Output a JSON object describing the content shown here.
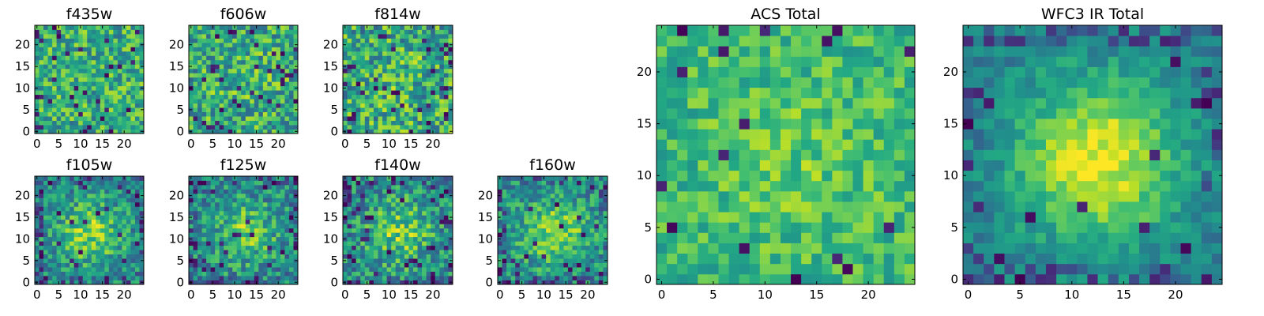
{
  "chart_data": {
    "type": "heatmap",
    "colormap": "viridis",
    "grid": false,
    "panels": [
      {
        "title": "f435w",
        "size": 25,
        "x_ticks": [
          0,
          5,
          10,
          15,
          20
        ],
        "y_ticks": [
          0,
          5,
          10,
          15,
          20
        ],
        "xlim": [
          0,
          24
        ],
        "ylim": [
          0,
          24
        ],
        "seed": 11,
        "center": 0.0,
        "base": 0.62,
        "noise": 0.26,
        "outliers": 0.05
      },
      {
        "title": "f606w",
        "size": 25,
        "x_ticks": [
          0,
          5,
          10,
          15,
          20
        ],
        "y_ticks": [
          0,
          5,
          10,
          15,
          20
        ],
        "xlim": [
          0,
          24
        ],
        "ylim": [
          0,
          24
        ],
        "seed": 23,
        "center": 0.05,
        "base": 0.6,
        "noise": 0.28,
        "outliers": 0.05
      },
      {
        "title": "f814w",
        "size": 25,
        "x_ticks": [
          0,
          5,
          10,
          15,
          20
        ],
        "y_ticks": [
          0,
          5,
          10,
          15,
          20
        ],
        "xlim": [
          0,
          24
        ],
        "ylim": [
          0,
          24
        ],
        "seed": 37,
        "center": 0.05,
        "base": 0.6,
        "noise": 0.3,
        "outliers": 0.06
      },
      {
        "title": "f105w",
        "size": 25,
        "x_ticks": [
          0,
          5,
          10,
          15,
          20
        ],
        "y_ticks": [
          0,
          5,
          10,
          15,
          20
        ],
        "xlim": [
          0,
          24
        ],
        "ylim": [
          0,
          24
        ],
        "seed": 41,
        "center": 0.35,
        "base": 0.45,
        "noise": 0.22,
        "outliers": 0.04
      },
      {
        "title": "f125w",
        "size": 25,
        "x_ticks": [
          0,
          5,
          10,
          15,
          20
        ],
        "y_ticks": [
          0,
          5,
          10,
          15,
          20
        ],
        "xlim": [
          0,
          24
        ],
        "ylim": [
          0,
          24
        ],
        "seed": 53,
        "center": 0.3,
        "base": 0.45,
        "noise": 0.24,
        "outliers": 0.05
      },
      {
        "title": "f140w",
        "size": 25,
        "x_ticks": [
          0,
          5,
          10,
          15,
          20
        ],
        "y_ticks": [
          0,
          5,
          10,
          15,
          20
        ],
        "xlim": [
          0,
          24
        ],
        "ylim": [
          0,
          24
        ],
        "seed": 67,
        "center": 0.3,
        "base": 0.47,
        "noise": 0.25,
        "outliers": 0.05
      },
      {
        "title": "f160w",
        "size": 25,
        "x_ticks": [
          0,
          5,
          10,
          15,
          20
        ],
        "y_ticks": [
          0,
          5,
          10,
          15,
          20
        ],
        "xlim": [
          0,
          24
        ],
        "ylim": [
          0,
          24
        ],
        "seed": 79,
        "center": 0.35,
        "base": 0.47,
        "noise": 0.22,
        "outliers": 0.04
      },
      {
        "title": "ACS Total",
        "size": 25,
        "x_ticks": [
          0,
          5,
          10,
          15,
          20
        ],
        "y_ticks": [
          0,
          5,
          10,
          15,
          20
        ],
        "xlim": [
          0,
          24
        ],
        "ylim": [
          0,
          24
        ],
        "seed": 97,
        "center": 0.1,
        "base": 0.66,
        "noise": 0.17,
        "outliers": 0.035
      },
      {
        "title": "WFC3 IR Total",
        "size": 25,
        "x_ticks": [
          0,
          5,
          10,
          15,
          20
        ],
        "y_ticks": [
          0,
          5,
          10,
          15,
          20
        ],
        "xlim": [
          0,
          24
        ],
        "ylim": [
          0,
          24
        ],
        "seed": 113,
        "center": 0.55,
        "base": 0.42,
        "noise": 0.12,
        "outliers": 0.02
      }
    ]
  }
}
